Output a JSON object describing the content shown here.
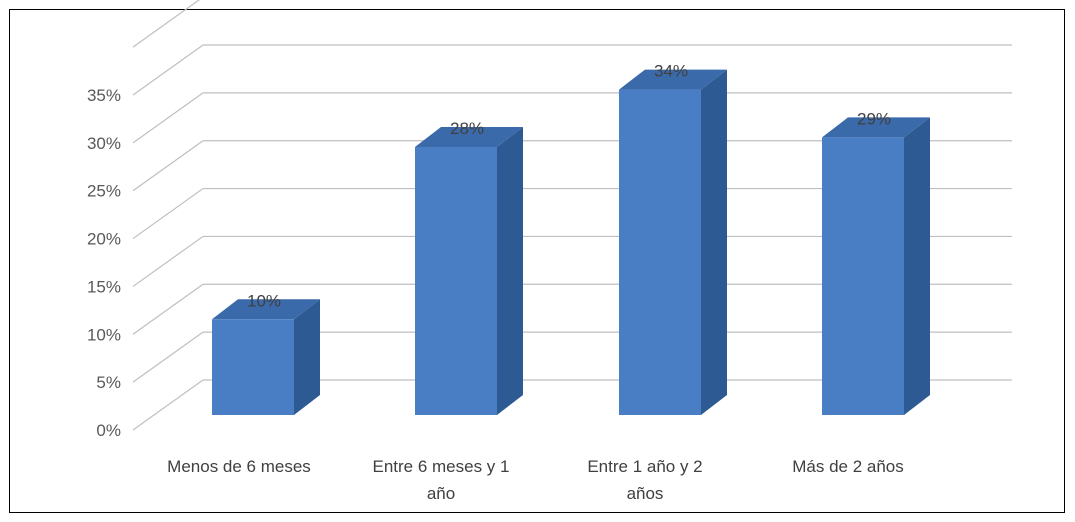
{
  "chart_data": {
    "type": "bar",
    "three_d": true,
    "categories": [
      [
        "Menos de 6 meses"
      ],
      [
        "Entre 6 meses y 1",
        "año"
      ],
      [
        "Entre 1 año y 2",
        "años"
      ],
      [
        "Más de 2 años"
      ]
    ],
    "values": [
      10,
      28,
      34,
      29
    ],
    "data_labels": [
      "10%",
      "28%",
      "34%",
      "29%"
    ],
    "yticks": [
      "0%",
      "5%",
      "10%",
      "15%",
      "20%",
      "25%",
      "30%",
      "35%"
    ],
    "ylim": [
      0,
      40
    ],
    "grid": true,
    "legend": "none",
    "colors": {
      "bar_front": "#4a7ec4",
      "bar_side": "#2d5a92",
      "bar_top": "#3a6aaa",
      "grid": "#bfbfbf"
    }
  }
}
